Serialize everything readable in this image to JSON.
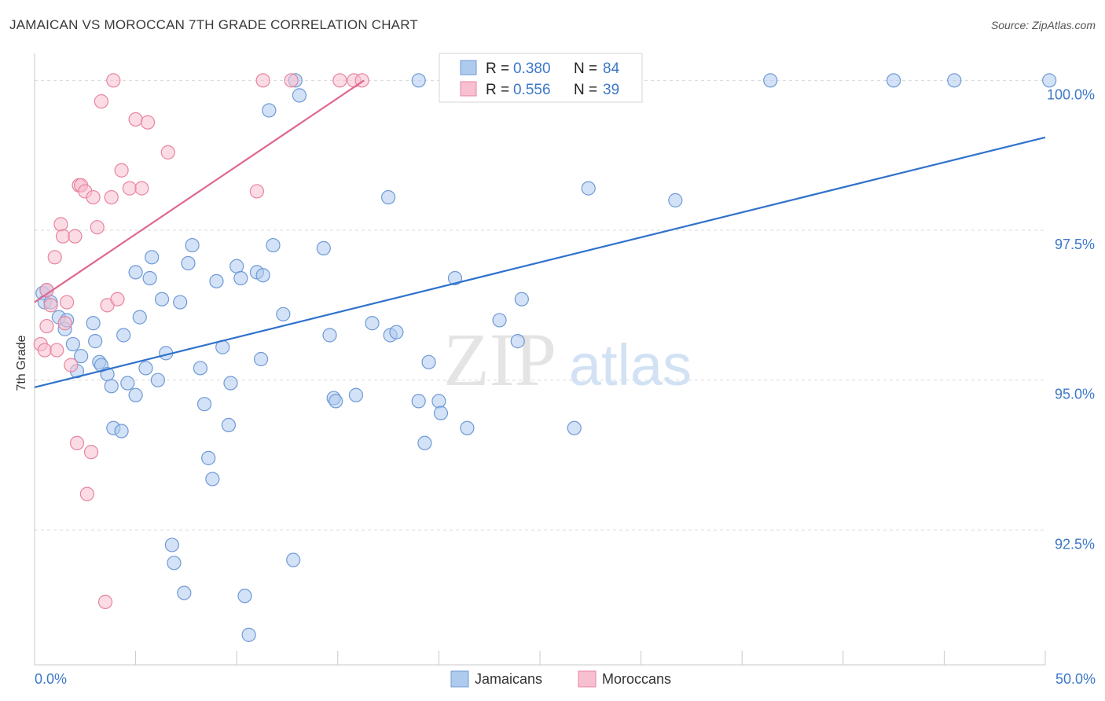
{
  "title": "JAMAICAN VS MOROCCAN 7TH GRADE CORRELATION CHART",
  "source": "Source: ZipAtlas.com",
  "watermark": {
    "zip": "ZIP",
    "atlas": "atlas"
  },
  "legend_top": [
    {
      "r_label": "R =",
      "r_value": "0.380",
      "n_label": "N =",
      "n_value": "84"
    },
    {
      "r_label": "R =",
      "r_value": "0.556",
      "n_label": "N =",
      "n_value": "39"
    }
  ],
  "legend_bottom": [
    "Jamaicans",
    "Moroccans"
  ],
  "colors": {
    "jamaican_fill": "#aecbee",
    "jamaican_stroke": "#6f9ad6",
    "jamaican_line": "#2f72cc",
    "moroccan_fill": "#f7c0d0",
    "moroccan_stroke": "#e8849f",
    "moroccan_line": "#e0688f",
    "tick_label": "#3d78c8",
    "grid": "#d8d8d8"
  },
  "chart_data": {
    "type": "scatter",
    "title": "JAMAICAN VS MOROCCAN 7TH GRADE CORRELATION CHART",
    "xlabel": "",
    "ylabel": "7th Grade",
    "xlim": [
      0,
      50
    ],
    "ylim": [
      90.25,
      100.45
    ],
    "x_tick_labels": [
      "0.0%",
      "50.0%"
    ],
    "y_ticks": [
      92.5,
      95.0,
      97.5,
      100.0
    ],
    "y_tick_labels": [
      "92.5%",
      "95.0%",
      "97.5%",
      "100.0%"
    ],
    "grid": true,
    "legend_position": "top-center",
    "series": [
      {
        "name": "Jamaicans",
        "r": 0.38,
        "n": 84,
        "trend": {
          "x": [
            0,
            50
          ],
          "y": [
            94.88,
            99.05
          ]
        },
        "points": [
          [
            0.4,
            96.45
          ],
          [
            0.5,
            96.3
          ],
          [
            0.6,
            96.5
          ],
          [
            0.8,
            96.3
          ],
          [
            1.2,
            96.05
          ],
          [
            1.5,
            95.85
          ],
          [
            1.6,
            96.0
          ],
          [
            1.9,
            95.6
          ],
          [
            2.1,
            95.15
          ],
          [
            2.3,
            95.4
          ],
          [
            2.9,
            95.95
          ],
          [
            3.0,
            95.65
          ],
          [
            3.2,
            95.3
          ],
          [
            3.3,
            95.25
          ],
          [
            3.6,
            95.1
          ],
          [
            3.8,
            94.9
          ],
          [
            3.9,
            94.2
          ],
          [
            4.3,
            94.15
          ],
          [
            4.4,
            95.75
          ],
          [
            4.6,
            94.95
          ],
          [
            5.0,
            94.75
          ],
          [
            5.0,
            96.8
          ],
          [
            5.2,
            96.05
          ],
          [
            5.5,
            95.2
          ],
          [
            5.7,
            96.7
          ],
          [
            5.8,
            97.05
          ],
          [
            6.1,
            95.0
          ],
          [
            6.3,
            96.35
          ],
          [
            6.5,
            95.45
          ],
          [
            6.8,
            92.25
          ],
          [
            6.9,
            91.95
          ],
          [
            7.2,
            96.3
          ],
          [
            7.4,
            91.45
          ],
          [
            7.6,
            96.95
          ],
          [
            7.8,
            97.25
          ],
          [
            8.2,
            95.2
          ],
          [
            8.4,
            94.6
          ],
          [
            8.6,
            93.7
          ],
          [
            8.8,
            93.35
          ],
          [
            9.0,
            96.65
          ],
          [
            9.3,
            95.55
          ],
          [
            9.6,
            94.25
          ],
          [
            9.7,
            94.95
          ],
          [
            10.0,
            96.9
          ],
          [
            10.2,
            96.7
          ],
          [
            10.4,
            91.4
          ],
          [
            10.6,
            90.75
          ],
          [
            11.0,
            96.8
          ],
          [
            11.2,
            95.35
          ],
          [
            11.3,
            96.75
          ],
          [
            11.6,
            99.5
          ],
          [
            11.8,
            97.25
          ],
          [
            12.3,
            96.1
          ],
          [
            12.8,
            92.0
          ],
          [
            12.9,
            100.0
          ],
          [
            13.1,
            99.75
          ],
          [
            14.3,
            97.2
          ],
          [
            14.6,
            95.75
          ],
          [
            14.8,
            94.7
          ],
          [
            14.9,
            94.65
          ],
          [
            15.9,
            94.75
          ],
          [
            16.7,
            95.95
          ],
          [
            17.5,
            98.05
          ],
          [
            17.6,
            95.75
          ],
          [
            17.9,
            95.8
          ],
          [
            19.0,
            100.0
          ],
          [
            19.0,
            94.65
          ],
          [
            19.3,
            93.95
          ],
          [
            19.5,
            95.3
          ],
          [
            20.0,
            94.65
          ],
          [
            20.1,
            94.45
          ],
          [
            20.8,
            96.7
          ],
          [
            21.4,
            94.2
          ],
          [
            23.0,
            96.0
          ],
          [
            23.9,
            95.65
          ],
          [
            24.1,
            96.35
          ],
          [
            26.1,
            100.0
          ],
          [
            26.7,
            94.2
          ],
          [
            27.4,
            98.2
          ],
          [
            31.7,
            98.0
          ],
          [
            36.4,
            100.0
          ],
          [
            42.5,
            100.0
          ],
          [
            45.5,
            100.0
          ],
          [
            50.2,
            100.0
          ]
        ]
      },
      {
        "name": "Moroccans",
        "r": 0.556,
        "n": 39,
        "trend": {
          "x": [
            0,
            16.3
          ],
          "y": [
            96.3,
            100.0
          ]
        },
        "points": [
          [
            0.3,
            95.6
          ],
          [
            0.5,
            95.5
          ],
          [
            0.6,
            95.9
          ],
          [
            0.6,
            96.5
          ],
          [
            0.8,
            96.25
          ],
          [
            1.0,
            97.05
          ],
          [
            1.1,
            95.5
          ],
          [
            1.3,
            97.6
          ],
          [
            1.4,
            97.4
          ],
          [
            1.5,
            95.95
          ],
          [
            1.6,
            96.3
          ],
          [
            1.8,
            95.25
          ],
          [
            2.0,
            97.4
          ],
          [
            2.1,
            93.95
          ],
          [
            2.2,
            98.25
          ],
          [
            2.3,
            98.25
          ],
          [
            2.5,
            98.15
          ],
          [
            2.6,
            93.1
          ],
          [
            2.8,
            93.8
          ],
          [
            2.9,
            98.05
          ],
          [
            3.1,
            97.55
          ],
          [
            3.3,
            99.65
          ],
          [
            3.5,
            91.3
          ],
          [
            3.6,
            96.25
          ],
          [
            3.8,
            98.05
          ],
          [
            3.9,
            100.0
          ],
          [
            4.1,
            96.35
          ],
          [
            4.3,
            98.5
          ],
          [
            4.7,
            98.2
          ],
          [
            5.0,
            99.35
          ],
          [
            5.3,
            98.2
          ],
          [
            5.6,
            99.3
          ],
          [
            6.6,
            98.8
          ],
          [
            11.0,
            98.15
          ],
          [
            11.3,
            100.0
          ],
          [
            12.7,
            100.0
          ],
          [
            15.1,
            100.0
          ],
          [
            15.8,
            100.0
          ],
          [
            16.2,
            100.0
          ]
        ]
      }
    ]
  }
}
